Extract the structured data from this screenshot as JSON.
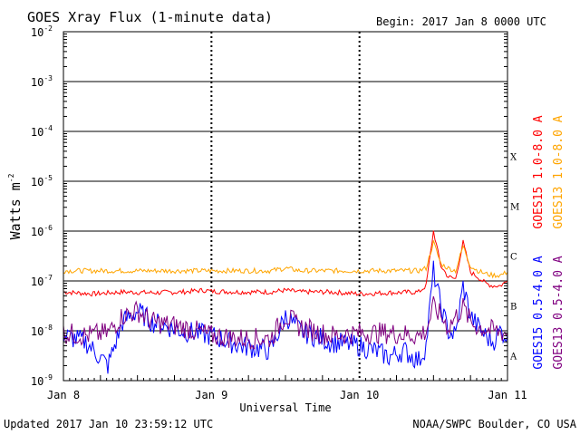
{
  "title": "GOES Xray Flux (1-minute data)",
  "begin": "Begin:  2017 Jan 8 0000 UTC",
  "updated": "Updated 2017 Jan 10 23:59:12 UTC",
  "source": "NOAA/SWPC Boulder, CO USA",
  "chart_data": {
    "type": "line",
    "title": "GOES Xray Flux (1-minute data)",
    "xlabel": "Universal Time",
    "ylabel": "Watts m",
    "ylabel_exp": "-2",
    "yscale": "log",
    "ylim": [
      1e-09,
      0.01
    ],
    "xlim_days": [
      0,
      3
    ],
    "x_tick_labels": [
      "Jan 8",
      "Jan 9",
      "Jan 10",
      "Jan 11"
    ],
    "y_ticks": [
      {
        "base": "10",
        "exp": "-2",
        "value": 0.01
      },
      {
        "base": "10",
        "exp": "-3",
        "value": 0.001
      },
      {
        "base": "10",
        "exp": "-4",
        "value": 0.0001
      },
      {
        "base": "10",
        "exp": "-5",
        "value": 1e-05
      },
      {
        "base": "10",
        "exp": "-6",
        "value": 1e-06
      },
      {
        "base": "10",
        "exp": "-7",
        "value": 1e-07
      },
      {
        "base": "10",
        "exp": "-8",
        "value": 1e-08
      },
      {
        "base": "10",
        "exp": "-9",
        "value": 1e-09
      }
    ],
    "flare_classes": [
      {
        "label": "X",
        "value": 0.0001
      },
      {
        "label": "M",
        "value": 1e-05
      },
      {
        "label": "C",
        "value": 1e-06
      },
      {
        "label": "B",
        "value": 1e-07
      },
      {
        "label": "A",
        "value": 1e-08
      }
    ],
    "series": [
      {
        "name": "GOES15 1.0-8.0 A",
        "color": "#ff0000",
        "x": [
          0,
          0.2,
          0.4,
          0.6,
          0.8,
          0.95,
          1.0,
          1.2,
          1.4,
          1.5,
          1.6,
          1.8,
          2.0,
          2.2,
          2.4,
          2.45,
          2.5,
          2.55,
          2.6,
          2.65,
          2.7,
          2.75,
          2.8,
          2.85,
          2.9,
          2.95,
          3.0
        ],
        "y": [
          6e-08,
          5.5e-08,
          6e-08,
          5.8e-08,
          6e-08,
          6.5e-08,
          6.2e-08,
          6e-08,
          6e-08,
          6.5e-08,
          6e-08,
          6e-08,
          5.5e-08,
          5.8e-08,
          6e-08,
          8e-08,
          1e-06,
          2e-07,
          1.2e-07,
          1.1e-07,
          6e-07,
          1.5e-07,
          1.2e-07,
          9e-08,
          8e-08,
          8e-08,
          1e-07
        ]
      },
      {
        "name": "GOES13 1.0-8.0 A",
        "color": "#ffa500",
        "x": [
          0,
          0.2,
          0.4,
          0.6,
          0.8,
          1.0,
          1.2,
          1.4,
          1.5,
          1.6,
          1.8,
          2.0,
          2.2,
          2.4,
          2.45,
          2.5,
          2.55,
          2.6,
          2.65,
          2.7,
          2.75,
          2.8,
          2.85,
          2.9,
          2.95,
          3.0
        ],
        "y": [
          1.6e-07,
          1.6e-07,
          1.6e-07,
          1.6e-07,
          1.6e-07,
          1.6e-07,
          1.6e-07,
          1.6e-07,
          1.8e-07,
          1.6e-07,
          1.6e-07,
          1.6e-07,
          1.6e-07,
          1.6e-07,
          1.8e-07,
          6e-07,
          2.2e-07,
          1.8e-07,
          1.6e-07,
          5e-07,
          2e-07,
          1.6e-07,
          1.4e-07,
          1.3e-07,
          1.3e-07,
          1.5e-07
        ]
      },
      {
        "name": "GOES15 0.5-4.0 A",
        "color": "#0000ff",
        "x": [
          0,
          0.15,
          0.3,
          0.4,
          0.5,
          0.6,
          0.8,
          1.0,
          1.2,
          1.4,
          1.5,
          1.6,
          1.8,
          2.0,
          2.1,
          2.2,
          2.3,
          2.4,
          2.45,
          2.5,
          2.55,
          2.6,
          2.65,
          2.7,
          2.75,
          2.8,
          2.85,
          2.9,
          2.95,
          3.0
        ],
        "y": [
          8e-09,
          6e-09,
          2e-09,
          1.5e-08,
          2.5e-08,
          1.5e-08,
          1e-08,
          8e-09,
          5e-09,
          4e-09,
          2e-08,
          1e-08,
          6e-09,
          5e-09,
          4e-09,
          3e-09,
          4e-09,
          2.5e-09,
          5e-09,
          1.6e-07,
          3e-08,
          1e-08,
          8e-09,
          8e-08,
          2e-08,
          1.2e-08,
          8e-09,
          6e-09,
          1e-08,
          8e-09
        ]
      },
      {
        "name": "GOES13 0.5-4.0 A",
        "color": "#800080",
        "x": [
          0,
          0.15,
          0.3,
          0.4,
          0.5,
          0.6,
          0.8,
          1.0,
          1.2,
          1.4,
          1.5,
          1.6,
          1.8,
          2.0,
          2.2,
          2.4,
          2.45,
          2.5,
          2.55,
          2.6,
          2.7,
          2.75,
          2.8,
          2.9,
          3.0
        ],
        "y": [
          9e-09,
          8e-09,
          9e-09,
          2e-08,
          2.5e-08,
          1.5e-08,
          1.2e-08,
          8e-09,
          7e-09,
          7e-09,
          2e-08,
          1.2e-08,
          8e-09,
          9e-09,
          9e-09,
          8e-09,
          1e-08,
          3e-08,
          2e-08,
          1.2e-08,
          3e-08,
          1.5e-08,
          1.2e-08,
          1e-08,
          9e-09
        ]
      }
    ]
  }
}
